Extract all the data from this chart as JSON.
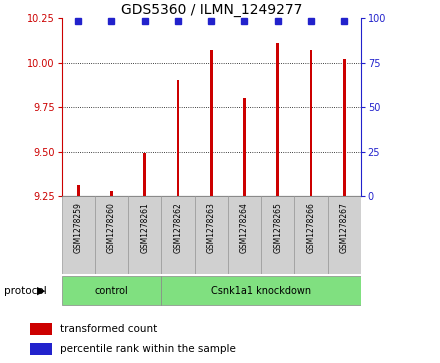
{
  "title": "GDS5360 / ILMN_1249277",
  "samples": [
    "GSM1278259",
    "GSM1278260",
    "GSM1278261",
    "GSM1278262",
    "GSM1278263",
    "GSM1278264",
    "GSM1278265",
    "GSM1278266",
    "GSM1278267"
  ],
  "transformed_counts": [
    9.31,
    9.28,
    9.49,
    9.9,
    10.07,
    9.8,
    10.11,
    10.07,
    10.02
  ],
  "groups": [
    "control",
    "control",
    "control",
    "Csnk1a1 knockdown",
    "Csnk1a1 knockdown",
    "Csnk1a1 knockdown",
    "Csnk1a1 knockdown",
    "Csnk1a1 knockdown",
    "Csnk1a1 knockdown"
  ],
  "bar_color": "#cc0000",
  "dot_color": "#2222cc",
  "ylim": [
    9.25,
    10.25
  ],
  "yticks": [
    9.25,
    9.5,
    9.75,
    10.0,
    10.25
  ],
  "y2ticks": [
    0,
    25,
    50,
    75,
    100
  ],
  "y2lim": [
    0,
    100
  ],
  "protocol_label": "protocol",
  "legend_bar_label": "transformed count",
  "legend_dot_label": "percentile rank within the sample",
  "title_fontsize": 10,
  "tick_fontsize": 7,
  "sample_box_color": "#d0d0d0",
  "sample_box_edge": "#999999",
  "green_color": "#80e080",
  "green_edge": "#888888",
  "bar_width": 0.08
}
